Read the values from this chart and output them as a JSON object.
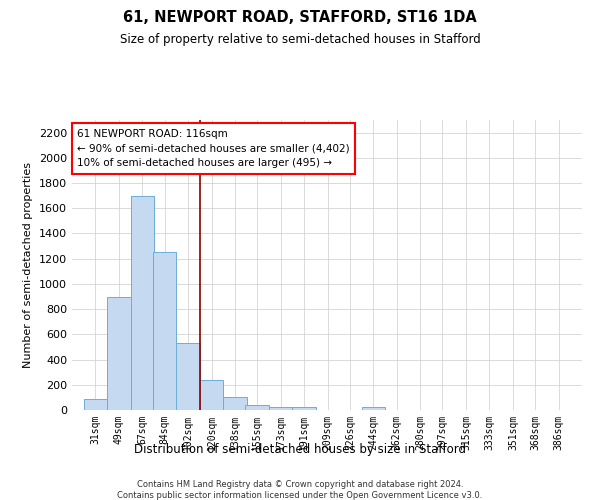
{
  "title": "61, NEWPORT ROAD, STAFFORD, ST16 1DA",
  "subtitle": "Size of property relative to semi-detached houses in Stafford",
  "xlabel": "Distribution of semi-detached houses by size in Stafford",
  "ylabel": "Number of semi-detached properties",
  "footnote1": "Contains HM Land Registry data © Crown copyright and database right 2024.",
  "footnote2": "Contains public sector information licensed under the Open Government Licence v3.0.",
  "annotation_line1": "61 NEWPORT ROAD: 116sqm",
  "annotation_line2": "← 90% of semi-detached houses are smaller (4,402)",
  "annotation_line3": "10% of semi-detached houses are larger (495) →",
  "bar_color": "#c5d9f0",
  "bar_edge_color": "#6baed6",
  "red_line_x": 120,
  "categories": [
    "31sqm",
    "49sqm",
    "67sqm",
    "84sqm",
    "102sqm",
    "120sqm",
    "138sqm",
    "155sqm",
    "173sqm",
    "191sqm",
    "209sqm",
    "226sqm",
    "244sqm",
    "262sqm",
    "280sqm",
    "297sqm",
    "315sqm",
    "333sqm",
    "351sqm",
    "368sqm",
    "386sqm"
  ],
  "values": [
    90,
    900,
    1700,
    1250,
    530,
    240,
    100,
    40,
    25,
    20,
    0,
    0,
    20,
    2,
    0,
    0,
    0,
    0,
    0,
    0,
    0
  ],
  "ylim": [
    0,
    2300
  ],
  "yticks": [
    0,
    200,
    400,
    600,
    800,
    1000,
    1200,
    1400,
    1600,
    1800,
    2000,
    2200
  ],
  "bin_width": 18,
  "bin_starts": [
    31,
    49,
    67,
    84,
    102,
    120,
    138,
    155,
    173,
    191,
    209,
    226,
    244,
    262,
    280,
    297,
    315,
    333,
    351,
    368,
    386
  ]
}
